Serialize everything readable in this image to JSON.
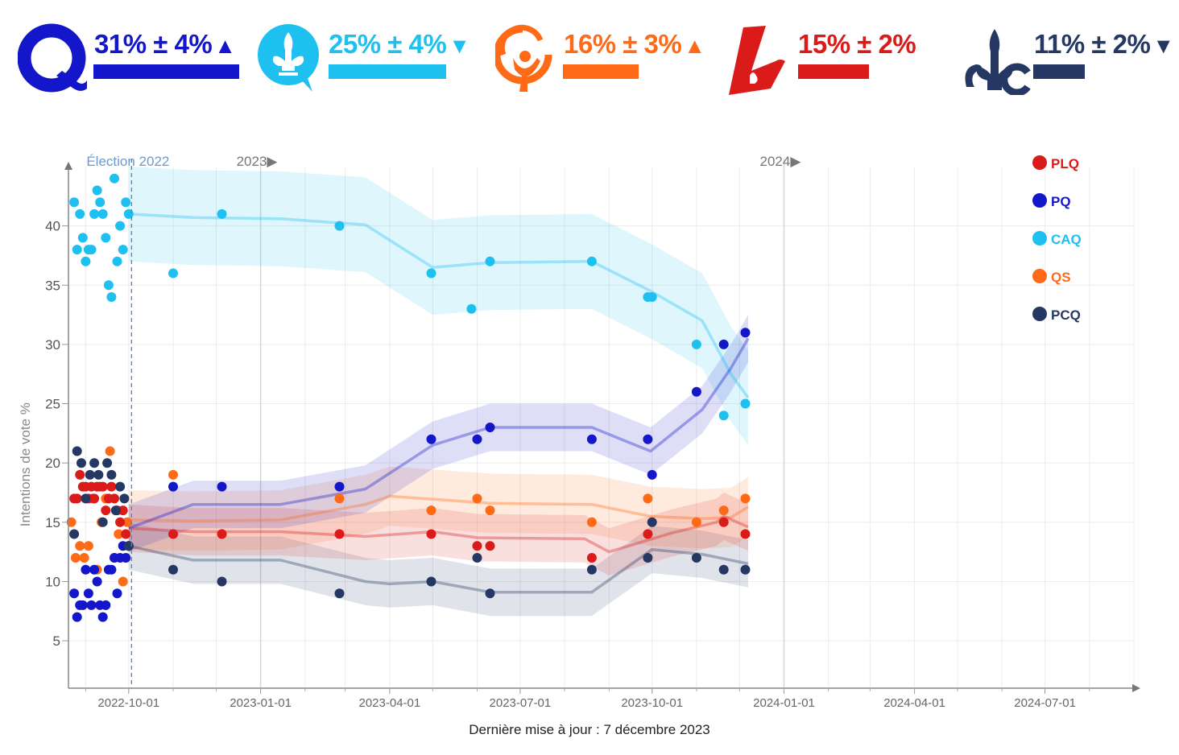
{
  "header": {
    "parties": [
      {
        "id": "PQ",
        "value_text": "31% ± 4%",
        "arrow": "▲",
        "trend": "up",
        "color": "#1316c9",
        "bar_fraction": 0.31,
        "icon": "pq-logo-icon"
      },
      {
        "id": "CAQ",
        "value_text": "25% ± 4%",
        "arrow": "▼",
        "trend": "down",
        "color": "#1ec0ef",
        "bar_fraction": 0.25,
        "icon": "caq-logo-icon"
      },
      {
        "id": "QS",
        "value_text": "16% ± 3%",
        "arrow": "▲",
        "trend": "up",
        "color": "#ff6a16",
        "bar_fraction": 0.16,
        "icon": "qs-logo-icon"
      },
      {
        "id": "PLQ",
        "value_text": "15% ± 2%",
        "arrow": "",
        "trend": "none",
        "color": "#db1a1a",
        "bar_fraction": 0.15,
        "icon": "plq-logo-icon"
      },
      {
        "id": "PCQ",
        "value_text": "11% ± 2%",
        "arrow": "▼",
        "trend": "down",
        "color": "#253864",
        "bar_fraction": 0.11,
        "icon": "pcq-logo-icon"
      }
    ]
  },
  "footer": {
    "updated": "Dernière mise à jour : 7 décembre 2023"
  },
  "chart_data": {
    "type": "scatter",
    "ylabel": "Intentions de vote %",
    "yticks": [
      5,
      10,
      15,
      20,
      25,
      30,
      35,
      40
    ],
    "xticks": [
      "2022-10-01",
      "2023-01-01",
      "2023-04-01",
      "2023-07-01",
      "2023-10-01",
      "2024-01-01",
      "2024-04-01",
      "2024-07-01"
    ],
    "xlim": [
      "2022-08-20",
      "2024-09-01"
    ],
    "ylim": [
      1,
      45
    ],
    "grid": true,
    "legend_position": "top-right",
    "annotations": [
      {
        "label": "Élection 2022",
        "date": "2022-10-03",
        "style": "dashed-line"
      },
      {
        "label": "2023▶",
        "date": "2023-01-01"
      },
      {
        "label": "2024▶",
        "date": "2024-01-01"
      }
    ],
    "series": [
      {
        "name": "PLQ",
        "color": "#db1a1a",
        "trend": [
          [
            "2022-10-01",
            14.5
          ],
          [
            "2022-11-15",
            14.2
          ],
          [
            "2023-01-15",
            14.2
          ],
          [
            "2023-03-15",
            13.8
          ],
          [
            "2023-05-01",
            14.2
          ],
          [
            "2023-06-01",
            13.7
          ],
          [
            "2023-08-15",
            13.6
          ],
          [
            "2023-09-01",
            12.5
          ],
          [
            "2023-10-01",
            13.6
          ],
          [
            "2023-10-15",
            14.1
          ],
          [
            "2023-11-15",
            15
          ],
          [
            "2023-11-20",
            15.5
          ],
          [
            "2023-12-07",
            14.6
          ]
        ],
        "band": 2,
        "points": [
          [
            "2022-08-24",
            17
          ],
          [
            "2022-08-26",
            17
          ],
          [
            "2022-08-28",
            19
          ],
          [
            "2022-08-30",
            18
          ],
          [
            "2022-09-01",
            18
          ],
          [
            "2022-09-03",
            17
          ],
          [
            "2022-09-05",
            18
          ],
          [
            "2022-09-07",
            17
          ],
          [
            "2022-09-09",
            18
          ],
          [
            "2022-09-11",
            18
          ],
          [
            "2022-09-13",
            18
          ],
          [
            "2022-09-15",
            16
          ],
          [
            "2022-09-17",
            17
          ],
          [
            "2022-09-19",
            18
          ],
          [
            "2022-09-21",
            17
          ],
          [
            "2022-09-23",
            16
          ],
          [
            "2022-09-25",
            15
          ],
          [
            "2022-09-27",
            16
          ],
          [
            "2022-09-29",
            14
          ],
          [
            "2022-10-01",
            13
          ],
          [
            "2022-11-01",
            14
          ],
          [
            "2022-12-05",
            14
          ],
          [
            "2023-02-25",
            14
          ],
          [
            "2023-04-30",
            14
          ],
          [
            "2023-06-01",
            13
          ],
          [
            "2023-06-10",
            13
          ],
          [
            "2023-08-20",
            12
          ],
          [
            "2023-09-28",
            14
          ],
          [
            "2023-11-20",
            15
          ],
          [
            "2023-12-05",
            14
          ]
        ]
      },
      {
        "name": "PQ",
        "color": "#1316c9",
        "trend": [
          [
            "2022-10-01",
            14.5
          ],
          [
            "2022-11-15",
            16.5
          ],
          [
            "2023-01-15",
            16.5
          ],
          [
            "2023-03-15",
            17.8
          ],
          [
            "2023-05-01",
            21.5
          ],
          [
            "2023-06-10",
            23
          ],
          [
            "2023-08-20",
            23
          ],
          [
            "2023-09-30",
            21
          ],
          [
            "2023-11-05",
            24.5
          ],
          [
            "2023-11-25",
            28
          ],
          [
            "2023-12-07",
            30.5
          ]
        ],
        "band": 2,
        "points": [
          [
            "2022-08-24",
            9
          ],
          [
            "2022-08-26",
            7
          ],
          [
            "2022-08-28",
            8
          ],
          [
            "2022-08-30",
            8
          ],
          [
            "2022-09-01",
            11
          ],
          [
            "2022-09-03",
            9
          ],
          [
            "2022-09-05",
            8
          ],
          [
            "2022-09-07",
            11
          ],
          [
            "2022-09-09",
            10
          ],
          [
            "2022-09-11",
            8
          ],
          [
            "2022-09-13",
            7
          ],
          [
            "2022-09-15",
            8
          ],
          [
            "2022-09-17",
            11
          ],
          [
            "2022-09-19",
            11
          ],
          [
            "2022-09-21",
            12
          ],
          [
            "2022-09-23",
            9
          ],
          [
            "2022-09-25",
            12
          ],
          [
            "2022-09-27",
            13
          ],
          [
            "2022-09-29",
            12
          ],
          [
            "2022-10-01",
            13
          ],
          [
            "2022-11-01",
            18
          ],
          [
            "2022-12-05",
            18
          ],
          [
            "2023-02-25",
            18
          ],
          [
            "2023-04-30",
            22
          ],
          [
            "2023-06-01",
            22
          ],
          [
            "2023-06-10",
            23
          ],
          [
            "2023-08-20",
            22
          ],
          [
            "2023-09-28",
            22
          ],
          [
            "2023-10-01",
            19
          ],
          [
            "2023-11-01",
            26
          ],
          [
            "2023-11-20",
            30
          ],
          [
            "2023-12-05",
            31
          ]
        ]
      },
      {
        "name": "CAQ",
        "color": "#1ec0ef",
        "trend": [
          [
            "2022-10-01",
            41
          ],
          [
            "2022-11-15",
            40.7
          ],
          [
            "2023-01-15",
            40.6
          ],
          [
            "2023-03-15",
            40.1
          ],
          [
            "2023-05-01",
            36.5
          ],
          [
            "2023-06-10",
            36.9
          ],
          [
            "2023-08-20",
            37
          ],
          [
            "2023-09-30",
            34.5
          ],
          [
            "2023-11-05",
            32
          ],
          [
            "2023-11-25",
            27.5
          ],
          [
            "2023-12-07",
            25.5
          ]
        ],
        "band": 4,
        "points": [
          [
            "2022-08-24",
            42
          ],
          [
            "2022-08-26",
            38
          ],
          [
            "2022-08-28",
            41
          ],
          [
            "2022-08-30",
            39
          ],
          [
            "2022-09-01",
            37
          ],
          [
            "2022-09-03",
            38
          ],
          [
            "2022-09-05",
            38
          ],
          [
            "2022-09-07",
            41
          ],
          [
            "2022-09-09",
            43
          ],
          [
            "2022-09-11",
            42
          ],
          [
            "2022-09-13",
            41
          ],
          [
            "2022-09-15",
            39
          ],
          [
            "2022-09-17",
            35
          ],
          [
            "2022-09-19",
            34
          ],
          [
            "2022-09-21",
            44
          ],
          [
            "2022-09-23",
            37
          ],
          [
            "2022-09-25",
            40
          ],
          [
            "2022-09-27",
            38
          ],
          [
            "2022-09-29",
            42
          ],
          [
            "2022-10-01",
            41
          ],
          [
            "2022-11-01",
            36
          ],
          [
            "2022-12-05",
            41
          ],
          [
            "2023-02-25",
            40
          ],
          [
            "2023-04-30",
            36
          ],
          [
            "2023-05-28",
            33
          ],
          [
            "2023-06-10",
            37
          ],
          [
            "2023-08-20",
            37
          ],
          [
            "2023-09-28",
            34
          ],
          [
            "2023-10-01",
            34
          ],
          [
            "2023-11-01",
            30
          ],
          [
            "2023-11-20",
            24
          ],
          [
            "2023-12-05",
            25
          ]
        ]
      },
      {
        "name": "QS",
        "color": "#ff6a16",
        "trend": [
          [
            "2022-10-01",
            15.2
          ],
          [
            "2022-11-15",
            15.1
          ],
          [
            "2023-01-15",
            15.2
          ],
          [
            "2023-03-15",
            16.5
          ],
          [
            "2023-04-01",
            17.2
          ],
          [
            "2023-06-10",
            16.6
          ],
          [
            "2023-08-20",
            16.5
          ],
          [
            "2023-09-30",
            15.5
          ],
          [
            "2023-11-05",
            15.3
          ],
          [
            "2023-11-25",
            15.4
          ],
          [
            "2023-12-07",
            16.3
          ]
        ],
        "band": 2.5,
        "points": [
          [
            "2022-08-22",
            15
          ],
          [
            "2022-08-25",
            12
          ],
          [
            "2022-08-28",
            13
          ],
          [
            "2022-08-31",
            12
          ],
          [
            "2022-09-03",
            13
          ],
          [
            "2022-09-06",
            17
          ],
          [
            "2022-09-09",
            11
          ],
          [
            "2022-09-12",
            15
          ],
          [
            "2022-09-15",
            17
          ],
          [
            "2022-09-18",
            21
          ],
          [
            "2022-09-21",
            12
          ],
          [
            "2022-09-24",
            14
          ],
          [
            "2022-09-27",
            10
          ],
          [
            "2022-09-30",
            15
          ],
          [
            "2022-11-01",
            19
          ],
          [
            "2022-12-05",
            14
          ],
          [
            "2023-02-25",
            17
          ],
          [
            "2023-04-30",
            16
          ],
          [
            "2023-06-01",
            17
          ],
          [
            "2023-06-10",
            16
          ],
          [
            "2023-08-20",
            15
          ],
          [
            "2023-09-28",
            17
          ],
          [
            "2023-11-01",
            15
          ],
          [
            "2023-11-20",
            16
          ],
          [
            "2023-12-05",
            17
          ]
        ]
      },
      {
        "name": "PCQ",
        "color": "#253864",
        "trend": [
          [
            "2022-10-01",
            13
          ],
          [
            "2022-11-15",
            11.8
          ],
          [
            "2023-01-15",
            11.8
          ],
          [
            "2023-03-15",
            10
          ],
          [
            "2023-04-01",
            9.8
          ],
          [
            "2023-05-01",
            10
          ],
          [
            "2023-06-10",
            9.1
          ],
          [
            "2023-08-20",
            9.1
          ],
          [
            "2023-10-01",
            12.7
          ],
          [
            "2023-11-05",
            12.3
          ],
          [
            "2023-12-07",
            11.5
          ]
        ],
        "band": 2,
        "points": [
          [
            "2022-08-24",
            14
          ],
          [
            "2022-08-26",
            21
          ],
          [
            "2022-08-29",
            20
          ],
          [
            "2022-09-01",
            17
          ],
          [
            "2022-09-04",
            19
          ],
          [
            "2022-09-07",
            20
          ],
          [
            "2022-09-10",
            19
          ],
          [
            "2022-09-13",
            15
          ],
          [
            "2022-09-16",
            20
          ],
          [
            "2022-09-19",
            19
          ],
          [
            "2022-09-22",
            16
          ],
          [
            "2022-09-25",
            18
          ],
          [
            "2022-09-28",
            17
          ],
          [
            "2022-10-01",
            13
          ],
          [
            "2022-11-01",
            11
          ],
          [
            "2022-12-05",
            10
          ],
          [
            "2023-02-25",
            9
          ],
          [
            "2023-04-30",
            10
          ],
          [
            "2023-06-01",
            12
          ],
          [
            "2023-06-10",
            9
          ],
          [
            "2023-08-20",
            11
          ],
          [
            "2023-09-28",
            12
          ],
          [
            "2023-10-01",
            15
          ],
          [
            "2023-11-01",
            12
          ],
          [
            "2023-11-20",
            11
          ],
          [
            "2023-12-05",
            11
          ]
        ]
      }
    ],
    "legend": [
      "PLQ",
      "PQ",
      "CAQ",
      "QS",
      "PCQ"
    ]
  }
}
